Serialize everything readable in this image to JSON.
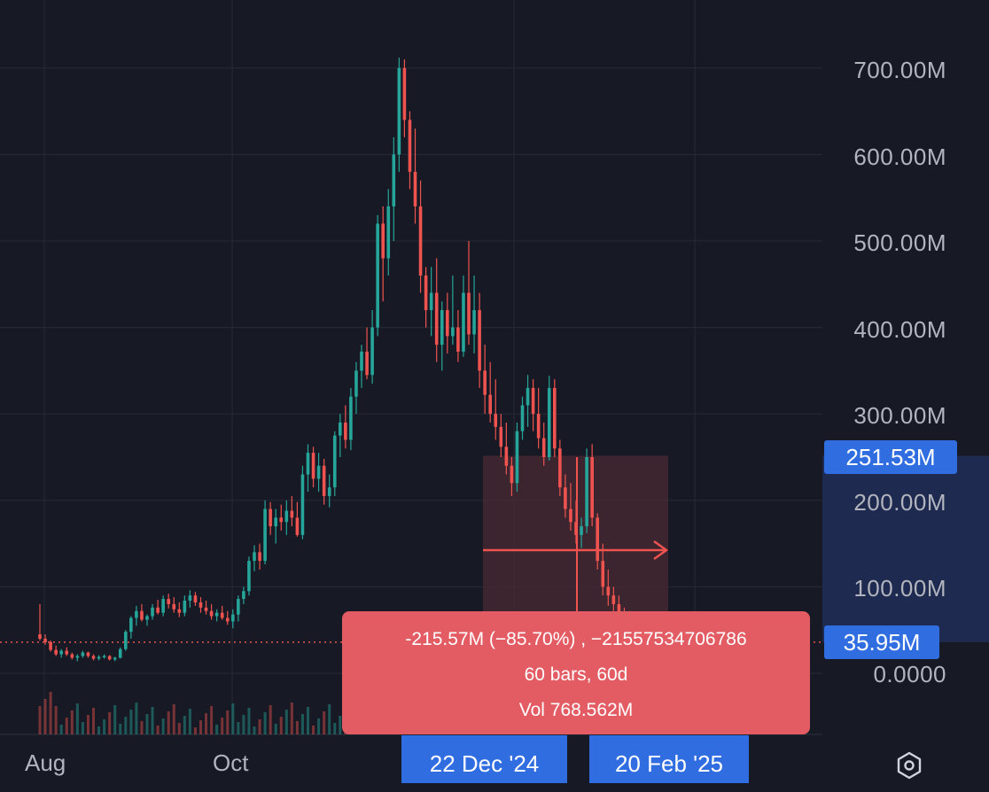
{
  "chart_data": {
    "type": "candlestick",
    "y_ticks": [
      "700.00M",
      "600.00M",
      "500.00M",
      "400.00M",
      "300.00M",
      "200.00M",
      "100.00M",
      "0.0000"
    ],
    "x_ticks": [
      "Aug",
      "Oct"
    ],
    "ylim": [
      0,
      700000000
    ],
    "last_price_label": "35.95M",
    "last_price": 35950000,
    "measure_top_label": "251.53M",
    "measure_top": 251530000,
    "measure_start_date": "22 Dec '24",
    "measure_end_date": "20 Feb '25",
    "grid": true,
    "candles": [
      [
        45,
        80,
        38,
        40
      ],
      [
        40,
        45,
        33,
        36
      ],
      [
        36,
        38,
        25,
        27
      ],
      [
        27,
        32,
        20,
        22
      ],
      [
        22,
        28,
        18,
        26
      ],
      [
        26,
        30,
        20,
        22
      ],
      [
        22,
        24,
        16,
        18
      ],
      [
        18,
        22,
        14,
        20
      ],
      [
        20,
        26,
        18,
        24
      ],
      [
        24,
        25,
        18,
        20
      ],
      [
        20,
        22,
        15,
        17
      ],
      [
        17,
        21,
        15,
        19
      ],
      [
        19,
        22,
        17,
        20
      ],
      [
        20,
        21,
        15,
        16
      ],
      [
        16,
        19,
        14,
        18
      ],
      [
        18,
        30,
        17,
        28
      ],
      [
        28,
        50,
        26,
        48
      ],
      [
        48,
        66,
        40,
        64
      ],
      [
        64,
        78,
        55,
        72
      ],
      [
        72,
        80,
        60,
        62
      ],
      [
        62,
        68,
        55,
        66
      ],
      [
        66,
        80,
        62,
        76
      ],
      [
        76,
        85,
        68,
        70
      ],
      [
        70,
        90,
        66,
        86
      ],
      [
        86,
        92,
        75,
        80
      ],
      [
        80,
        88,
        70,
        74
      ],
      [
        74,
        82,
        65,
        70
      ],
      [
        70,
        90,
        66,
        84
      ],
      [
        84,
        96,
        76,
        90
      ],
      [
        90,
        94,
        78,
        82
      ],
      [
        82,
        88,
        70,
        76
      ],
      [
        76,
        84,
        68,
        72
      ],
      [
        72,
        80,
        62,
        66
      ],
      [
        66,
        74,
        60,
        70
      ],
      [
        70,
        78,
        62,
        64
      ],
      [
        64,
        72,
        56,
        60
      ],
      [
        60,
        74,
        52,
        68
      ],
      [
        68,
        90,
        60,
        86
      ],
      [
        86,
        100,
        80,
        95
      ],
      [
        95,
        135,
        90,
        130
      ],
      [
        130,
        148,
        118,
        140
      ],
      [
        140,
        150,
        120,
        130
      ],
      [
        130,
        200,
        126,
        190
      ],
      [
        190,
        198,
        160,
        170
      ],
      [
        170,
        190,
        150,
        180
      ],
      [
        180,
        195,
        165,
        175
      ],
      [
        175,
        200,
        160,
        188
      ],
      [
        188,
        205,
        170,
        180
      ],
      [
        180,
        198,
        158,
        160
      ],
      [
        160,
        240,
        155,
        230
      ],
      [
        230,
        265,
        210,
        255
      ],
      [
        255,
        262,
        215,
        225
      ],
      [
        225,
        255,
        210,
        240
      ],
      [
        240,
        248,
        195,
        205
      ],
      [
        205,
        230,
        192,
        215
      ],
      [
        215,
        280,
        205,
        275
      ],
      [
        275,
        300,
        250,
        290
      ],
      [
        290,
        310,
        260,
        270
      ],
      [
        270,
        330,
        258,
        320
      ],
      [
        320,
        360,
        300,
        350
      ],
      [
        350,
        380,
        330,
        372
      ],
      [
        372,
        400,
        340,
        345
      ],
      [
        345,
        420,
        335,
        400
      ],
      [
        400,
        530,
        390,
        520
      ],
      [
        520,
        540,
        430,
        480
      ],
      [
        480,
        560,
        460,
        540
      ],
      [
        540,
        620,
        500,
        600
      ],
      [
        600,
        712,
        580,
        700
      ],
      [
        700,
        710,
        620,
        640
      ],
      [
        640,
        650,
        560,
        580
      ],
      [
        580,
        630,
        520,
        540
      ],
      [
        540,
        570,
        440,
        460
      ],
      [
        460,
        470,
        400,
        420
      ],
      [
        420,
        470,
        390,
        440
      ],
      [
        440,
        480,
        360,
        380
      ],
      [
        380,
        430,
        350,
        420
      ],
      [
        420,
        440,
        370,
        390
      ],
      [
        390,
        460,
        380,
        400
      ],
      [
        400,
        420,
        360,
        372
      ],
      [
        372,
        460,
        366,
        440
      ],
      [
        440,
        500,
        380,
        392
      ],
      [
        392,
        460,
        370,
        420
      ],
      [
        420,
        440,
        330,
        350
      ],
      [
        350,
        380,
        300,
        322
      ],
      [
        322,
        360,
        290,
        300
      ],
      [
        300,
        340,
        270,
        285
      ],
      [
        285,
        300,
        250,
        262
      ],
      [
        262,
        290,
        230,
        240
      ],
      [
        240,
        250,
        205,
        220
      ],
      [
        220,
        290,
        210,
        280
      ],
      [
        280,
        320,
        270,
        310
      ],
      [
        310,
        345,
        285,
        330
      ],
      [
        330,
        340,
        280,
        300
      ],
      [
        300,
        330,
        260,
        272
      ],
      [
        272,
        290,
        240,
        250
      ],
      [
        250,
        344,
        246,
        330
      ],
      [
        330,
        340,
        250,
        260
      ],
      [
        260,
        270,
        205,
        215
      ],
      [
        215,
        230,
        180,
        190
      ],
      [
        190,
        220,
        165,
        175
      ],
      [
        175,
        200,
        150,
        160
      ],
      [
        160,
        180,
        145,
        170
      ],
      [
        170,
        260,
        162,
        250
      ],
      [
        250,
        265,
        170,
        180
      ],
      [
        180,
        185,
        120,
        130
      ],
      [
        130,
        150,
        90,
        100
      ],
      [
        100,
        120,
        78,
        90
      ],
      [
        90,
        100,
        72,
        80
      ],
      [
        80,
        90,
        60,
        70
      ],
      [
        70,
        76,
        58,
        64
      ],
      [
        64,
        72,
        50,
        60
      ],
      [
        60,
        64,
        42,
        46
      ],
      [
        46,
        52,
        36,
        38
      ]
    ]
  },
  "tooltip": {
    "line1": "-215.57M (−85.70%) , −21557534706786",
    "line2": "60 bars, 60d",
    "line3": "Vol 768.562M"
  },
  "colors": {
    "background": "#171a24",
    "grid": "#262a36",
    "up": "#26a69a",
    "down": "#ef5350",
    "accent": "#2f6de1",
    "measure_fill": "#4a2a32",
    "tooltip": "#e35c63"
  },
  "icons": {
    "settings": "hexagon-settings-icon"
  }
}
